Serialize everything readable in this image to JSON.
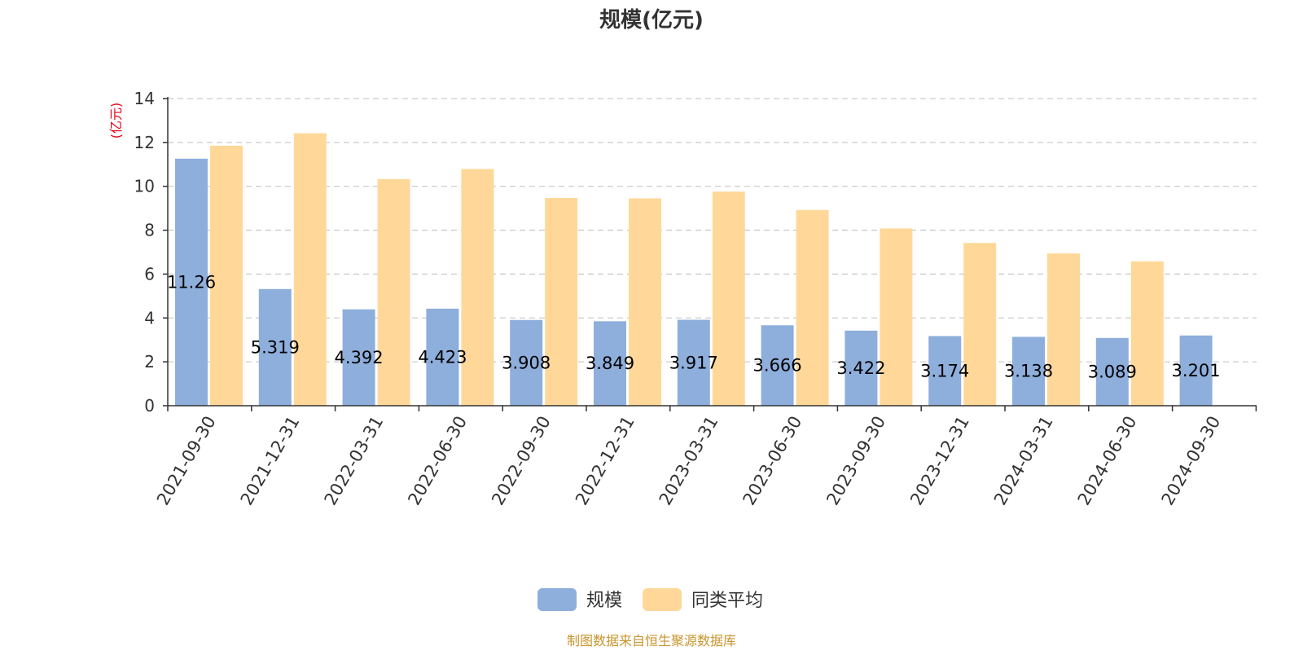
{
  "chart_data": {
    "type": "bar",
    "title": "规模(亿元)",
    "ylabel": "(亿元)",
    "xlabel": "",
    "ylim": [
      0,
      14
    ],
    "yticks": [
      0,
      2,
      4,
      6,
      8,
      10,
      12,
      14
    ],
    "grid": true,
    "legend_position": "bottom",
    "categories": [
      "2021-09-30",
      "2021-12-31",
      "2022-03-31",
      "2022-06-30",
      "2022-09-30",
      "2022-12-31",
      "2023-03-31",
      "2023-06-30",
      "2023-09-30",
      "2023-12-31",
      "2024-03-31",
      "2024-06-30",
      "2024-09-30"
    ],
    "series": [
      {
        "name": "规模",
        "color": "#8eaedc",
        "values": [
          11.26,
          5.319,
          4.392,
          4.423,
          3.908,
          3.849,
          3.917,
          3.666,
          3.422,
          3.174,
          3.138,
          3.089,
          3.201
        ],
        "labels": [
          "11.26",
          "5.319",
          "4.392",
          "4.423",
          "3.908",
          "3.849",
          "3.917",
          "3.666",
          "3.422",
          "3.174",
          "3.138",
          "3.089",
          "3.201"
        ]
      },
      {
        "name": "同类平均",
        "color": "#ffd899",
        "values": [
          11.85,
          12.42,
          10.33,
          10.79,
          9.47,
          9.45,
          9.76,
          8.92,
          8.08,
          7.42,
          6.94,
          6.58,
          null
        ]
      }
    ],
    "source": "制图数据来自恒生聚源数据库"
  }
}
